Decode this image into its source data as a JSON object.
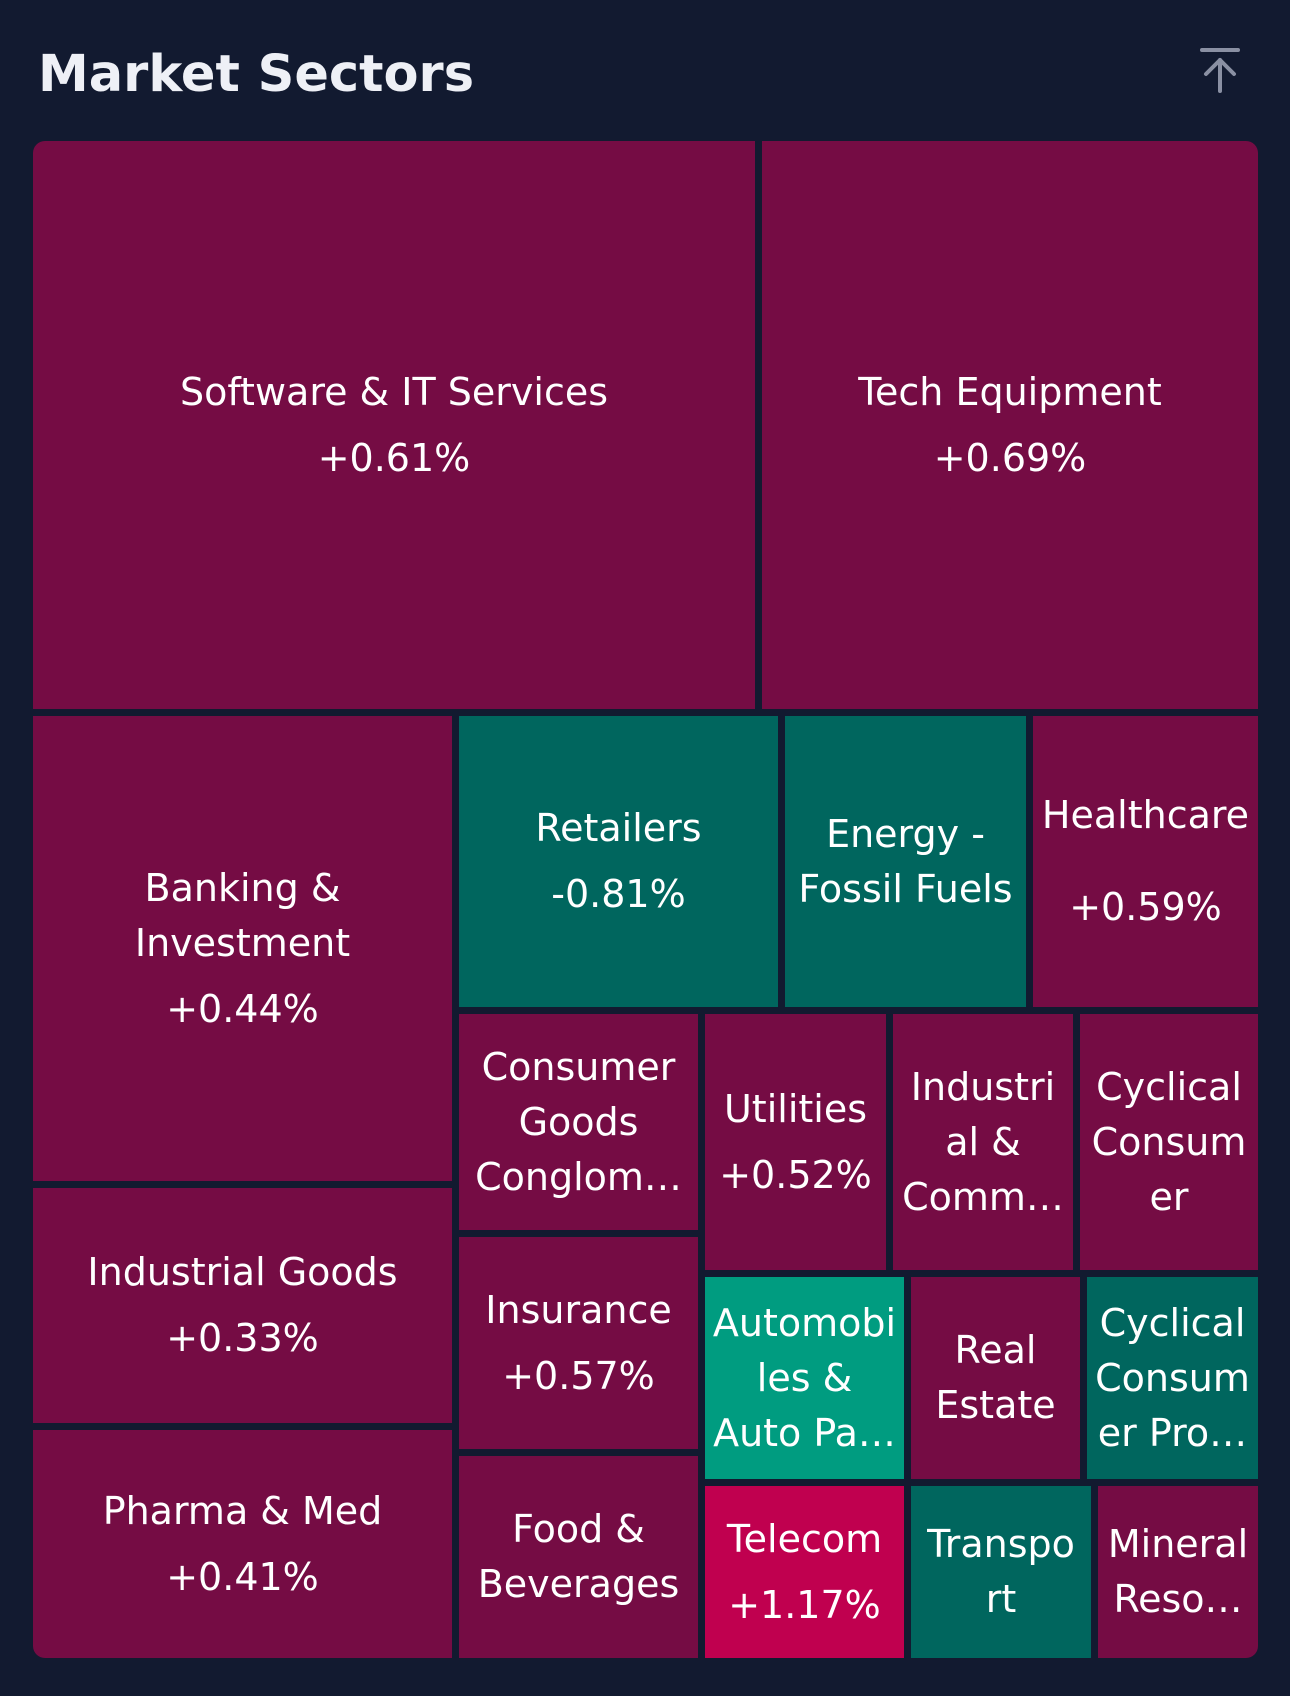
{
  "header": {
    "title": "Market Sectors",
    "collapse_icon": "arrow-up-to-line-icon"
  },
  "colors": {
    "background": "#121a30",
    "positive": "#750c44",
    "negative": "#00665e",
    "strong_negative": "#009c80",
    "strong_positive": "#c0004f"
  },
  "sectors": {
    "software": {
      "name": "Software & IT Services",
      "change": "+0.61%"
    },
    "tech": {
      "name": "Tech Equipment",
      "change": "+0.69%"
    },
    "banking": {
      "name": "Banking &\nInvestment",
      "change": "+0.44%"
    },
    "retailers": {
      "name": "Retailers",
      "change": "-0.81%"
    },
    "energy": {
      "name": "Energy -\nFossil Fuels",
      "change": ""
    },
    "healthcare": {
      "name": "Healthcare",
      "change": "+0.59%"
    },
    "consumer_goods": {
      "name": "Consumer\nGoods\nConglom…",
      "change": ""
    },
    "utilities": {
      "name": "Utilities",
      "change": "+0.52%"
    },
    "industrial_comm": {
      "name": "Industri\nal &\nComm…",
      "change": ""
    },
    "cyclical": {
      "name": "Cyclical\nConsum\ner",
      "change": ""
    },
    "industrial_goods": {
      "name": "Industrial Goods",
      "change": "+0.33%"
    },
    "insurance": {
      "name": "Insurance",
      "change": "+0.57%"
    },
    "automobiles": {
      "name": "Automobi\nles &\nAuto Pa…",
      "change": ""
    },
    "real_estate": {
      "name": "Real\nEstate",
      "change": ""
    },
    "cyclical_products": {
      "name": "Cyclical\nConsum\ner Pro…",
      "change": ""
    },
    "pharma": {
      "name": "Pharma & Med",
      "change": "+0.41%"
    },
    "food": {
      "name": "Food &\nBeverages",
      "change": ""
    },
    "telecom": {
      "name": "Telecom",
      "change": "+1.17%"
    },
    "transport": {
      "name": "Transpo\nrt",
      "change": ""
    },
    "mineral": {
      "name": "Mineral\nReso…",
      "change": ""
    }
  }
}
